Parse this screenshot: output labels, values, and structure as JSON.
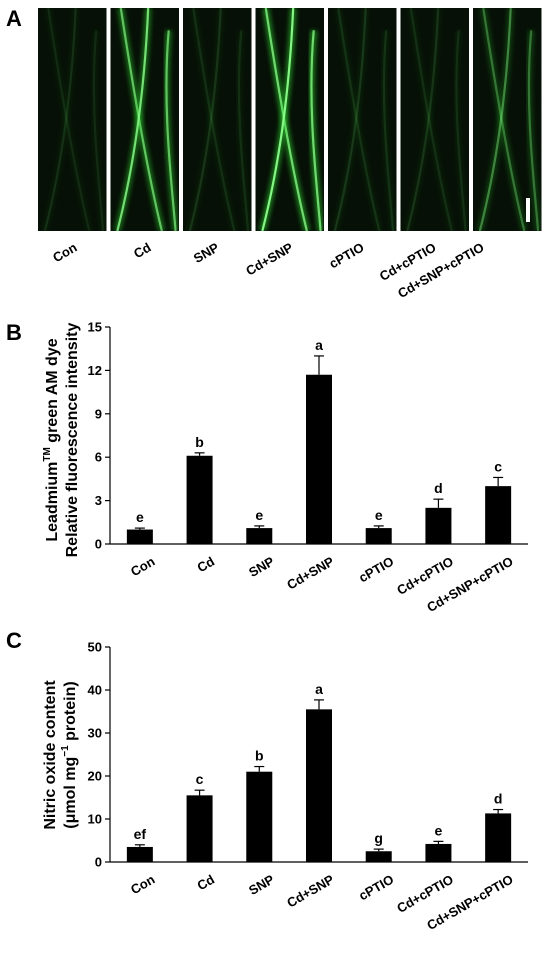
{
  "panels": {
    "a": {
      "letter": "A"
    },
    "b": {
      "letter": "B"
    },
    "c": {
      "letter": "C"
    }
  },
  "images": {
    "categories": [
      "Con",
      "Cd",
      "SNP",
      "Cd+SNP",
      "cPTIO",
      "Cd+cPTIO",
      "Cd+SNP+cPTIO"
    ],
    "colors": {
      "background": "#061006",
      "root": "#2fd02f",
      "bright": "#8dff8d"
    },
    "brightness": [
      0.02,
      0.8,
      0.04,
      0.95,
      0.05,
      0.04,
      0.35
    ]
  },
  "chart_data": [
    {
      "type": "bar",
      "categories": [
        "Con",
        "Cd",
        "SNP",
        "Cd+SNP",
        "cPTIO",
        "Cd+cPTIO",
        "Cd+SNP+cPTIO"
      ],
      "values": [
        1.0,
        6.1,
        1.1,
        11.7,
        1.1,
        2.5,
        4.0
      ],
      "errors": [
        0.1,
        0.2,
        0.15,
        1.3,
        0.15,
        0.6,
        0.6
      ],
      "significance": [
        "e",
        "b",
        "e",
        "a",
        "e",
        "d",
        "c"
      ],
      "ylabel_line1": "Leadmium",
      "ylabel_sup": "TM",
      "ylabel_line1_rest": " green AM dye",
      "ylabel_line2": "Relative fluorescence intensity",
      "ylim": [
        0,
        15
      ],
      "yticks": [
        "0",
        "3",
        "6",
        "9",
        "12",
        "15"
      ],
      "bar_color": "#000000"
    },
    {
      "type": "bar",
      "categories": [
        "Con",
        "Cd",
        "SNP",
        "Cd+SNP",
        "cPTIO",
        "Cd+cPTIO",
        "Cd+SNP+cPTIO"
      ],
      "values": [
        3.5,
        15.5,
        21.0,
        35.5,
        2.5,
        4.2,
        11.3
      ],
      "errors": [
        0.5,
        1.2,
        1.2,
        2.2,
        0.5,
        0.6,
        0.9
      ],
      "significance": [
        "ef",
        "c",
        "b",
        "a",
        "g",
        "e",
        "d"
      ],
      "ylabel_line1": "Nitric oxide content",
      "ylabel_line2_pre": "(μmol mg",
      "ylabel_line2_sup": "−1",
      "ylabel_line2_post": " protein)",
      "ylim": [
        0,
        50
      ],
      "yticks": [
        "0",
        "10",
        "20",
        "30",
        "40",
        "50"
      ],
      "bar_color": "#000000"
    }
  ]
}
